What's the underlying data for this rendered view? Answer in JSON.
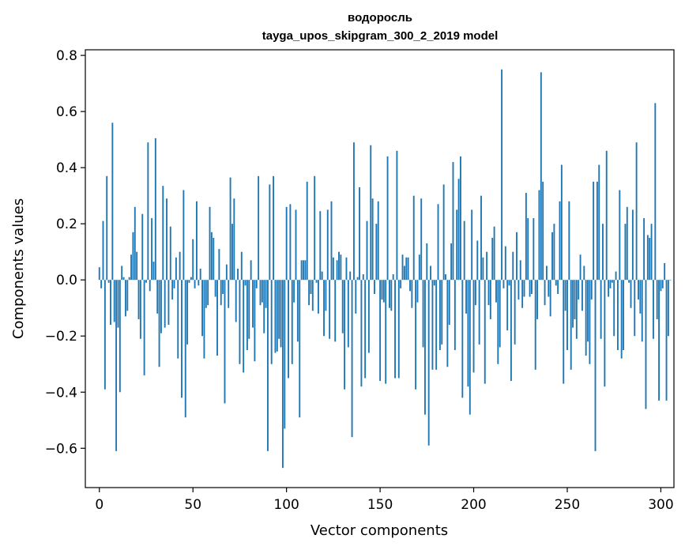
{
  "chart_data": {
    "type": "bar",
    "title": "водоросль",
    "subtitle": "tayga_upos_skipgram_300_2_2019 model",
    "xlabel": "Vector components",
    "ylabel": "Components values",
    "xlim": [
      -7.5,
      307
    ],
    "ylim": [
      -0.74,
      0.82
    ],
    "xticks": [
      0,
      50,
      100,
      150,
      200,
      250,
      300
    ],
    "yticks": [
      -0.6,
      -0.4,
      -0.2,
      0.0,
      0.2,
      0.4,
      0.6,
      0.8
    ],
    "ytick_labels": [
      "−0.6",
      "−0.4",
      "−0.2",
      "0.0",
      "0.2",
      "0.4",
      "0.6",
      "0.8"
    ],
    "xtick_labels": [
      "0",
      "50",
      "100",
      "150",
      "200",
      "250",
      "300"
    ],
    "grid": false,
    "bar_color": "#1f77b4",
    "values": [
      0.045,
      -0.03,
      0.21,
      -0.39,
      0.37,
      -0.01,
      -0.16,
      0.56,
      -0.15,
      -0.61,
      -0.17,
      -0.4,
      0.05,
      0.01,
      -0.13,
      -0.11,
      0.01,
      0.09,
      0.17,
      0.26,
      0.1,
      -0.14,
      -0.21,
      0.235,
      -0.34,
      -0.01,
      0.49,
      -0.04,
      0.22,
      0.065,
      0.505,
      -0.12,
      -0.31,
      -0.19,
      0.335,
      -0.17,
      0.29,
      -0.16,
      0.19,
      -0.07,
      -0.03,
      0.08,
      -0.28,
      0.1,
      -0.42,
      0.32,
      -0.49,
      -0.23,
      -0.01,
      0.01,
      0.145,
      -0.03,
      0.28,
      -0.02,
      0.04,
      -0.2,
      -0.28,
      -0.1,
      -0.09,
      0.26,
      0.17,
      0.15,
      -0.06,
      -0.27,
      0.11,
      -0.09,
      -0.05,
      -0.44,
      0.055,
      -0.1,
      0.365,
      0.2,
      0.29,
      -0.15,
      0.04,
      -0.3,
      0.1,
      -0.33,
      -0.02,
      -0.25,
      -0.21,
      0.07,
      -0.17,
      -0.29,
      -0.03,
      0.37,
      -0.09,
      -0.08,
      -0.19,
      -0.1,
      -0.61,
      0.34,
      -0.3,
      0.37,
      -0.26,
      -0.255,
      -0.21,
      -0.24,
      -0.67,
      -0.53,
      0.26,
      -0.35,
      0.27,
      -0.3,
      -0.08,
      0.25,
      -0.22,
      -0.49,
      0.07,
      0.07,
      0.07,
      0.35,
      -0.09,
      -0.05,
      -0.11,
      0.37,
      -0.01,
      -0.12,
      0.245,
      0.03,
      -0.2,
      -0.11,
      0.25,
      -0.21,
      0.28,
      0.08,
      -0.22,
      0.07,
      0.1,
      0.09,
      -0.19,
      -0.39,
      0.08,
      -0.24,
      0.03,
      -0.56,
      0.49,
      -0.12,
      0.01,
      0.33,
      -0.38,
      0.02,
      -0.35,
      0.21,
      -0.26,
      0.48,
      0.29,
      -0.05,
      0.2,
      0.28,
      -0.36,
      -0.07,
      -0.08,
      -0.37,
      0.44,
      -0.1,
      -0.11,
      0.02,
      -0.35,
      0.46,
      -0.35,
      -0.03,
      0.09,
      0.05,
      0.08,
      0.08,
      -0.04,
      -0.1,
      0.3,
      -0.39,
      -0.08,
      0.09,
      0.29,
      -0.24,
      -0.48,
      0.13,
      -0.59,
      0.05,
      -0.32,
      -0.02,
      -0.32,
      0.27,
      -0.25,
      -0.23,
      0.34,
      0.02,
      -0.31,
      -0.16,
      0.13,
      0.42,
      -0.25,
      0.25,
      0.36,
      0.44,
      -0.42,
      0.21,
      -0.12,
      -0.38,
      -0.48,
      0.25,
      -0.33,
      -0.09,
      0.14,
      -0.23,
      0.3,
      0.08,
      -0.37,
      0.1,
      -0.09,
      -0.14,
      0.15,
      0.19,
      -0.08,
      -0.3,
      -0.24,
      0.75,
      -0.03,
      0.12,
      -0.18,
      -0.02,
      -0.36,
      0.1,
      -0.23,
      0.17,
      -0.07,
      0.07,
      -0.1,
      -0.06,
      0.31,
      0.22,
      -0.06,
      -0.05,
      0.22,
      -0.32,
      -0.14,
      0.32,
      0.74,
      0.35,
      -0.09,
      0.05,
      -0.06,
      -0.13,
      0.17,
      0.2,
      -0.02,
      -0.05,
      0.28,
      0.41,
      -0.37,
      -0.11,
      -0.25,
      0.28,
      -0.32,
      -0.17,
      -0.14,
      -0.21,
      -0.07,
      0.09,
      -0.11,
      0.05,
      -0.27,
      -0.22,
      -0.3,
      -0.07,
      0.35,
      -0.61,
      0.35,
      0.41,
      -0.21,
      0.2,
      -0.38,
      0.46,
      -0.06,
      -0.03,
      -0.01,
      -0.2,
      0.03,
      -0.25,
      0.32,
      -0.28,
      -0.25,
      0.2,
      0.26,
      -0.01,
      -0.1,
      0.25,
      -0.2,
      0.49,
      -0.07,
      -0.12,
      -0.22,
      0.22,
      -0.46,
      0.16,
      0.15,
      0.2,
      -0.21,
      0.63,
      -0.14,
      -0.43,
      -0.04,
      -0.03,
      0.06,
      -0.43,
      -0.2,
      0.0
    ]
  }
}
